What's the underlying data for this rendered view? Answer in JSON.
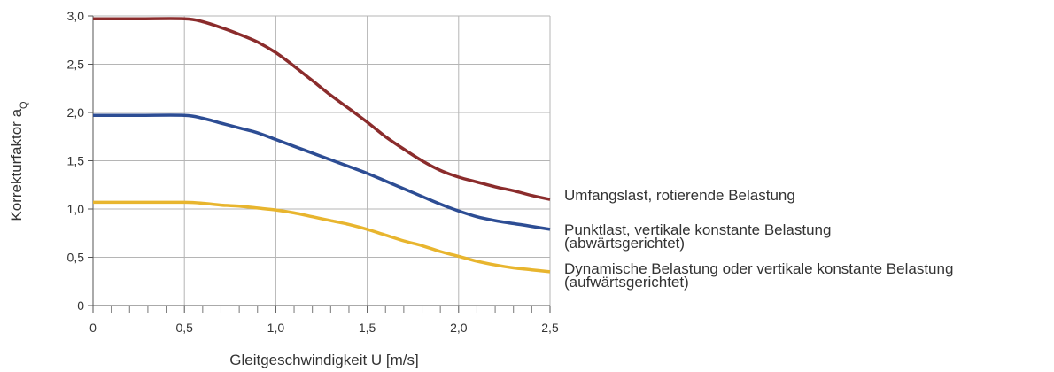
{
  "chart_data": {
    "type": "line",
    "title": "",
    "xlabel": "Gleitgeschwindigkeit U [m/s]",
    "ylabel": "Korrekturfaktor a",
    "ylabel_subscript": "Q",
    "xlim": [
      0,
      2.5
    ],
    "ylim": [
      0,
      3.0
    ],
    "x_ticks": [
      {
        "value": 0,
        "label": "0"
      },
      {
        "value": 0.5,
        "label": "0,5"
      },
      {
        "value": 1.0,
        "label": "1,0"
      },
      {
        "value": 1.5,
        "label": "1,5"
      },
      {
        "value": 2.0,
        "label": "2,0"
      },
      {
        "value": 2.5,
        "label": "2,5"
      }
    ],
    "x_minor_tick_step": 0.1,
    "y_ticks": [
      {
        "value": 0,
        "label": "0"
      },
      {
        "value": 0.5,
        "label": "0,5"
      },
      {
        "value": 1.0,
        "label": "1,0"
      },
      {
        "value": 1.5,
        "label": "1,5"
      },
      {
        "value": 2.0,
        "label": "2,0"
      },
      {
        "value": 2.5,
        "label": "2,5"
      },
      {
        "value": 3.0,
        "label": "3,0"
      }
    ],
    "grid": true,
    "legend": "inline-right",
    "series": [
      {
        "name_lines": [
          "Umfangslast, rotierende Belastung"
        ],
        "color": "#8b2c2c",
        "points": [
          [
            0,
            2.97
          ],
          [
            0.25,
            2.97
          ],
          [
            0.5,
            2.97
          ],
          [
            0.6,
            2.94
          ],
          [
            0.7,
            2.88
          ],
          [
            0.8,
            2.81
          ],
          [
            0.9,
            2.73
          ],
          [
            1.0,
            2.62
          ],
          [
            1.1,
            2.48
          ],
          [
            1.2,
            2.33
          ],
          [
            1.3,
            2.18
          ],
          [
            1.4,
            2.04
          ],
          [
            1.5,
            1.9
          ],
          [
            1.6,
            1.75
          ],
          [
            1.7,
            1.62
          ],
          [
            1.8,
            1.5
          ],
          [
            1.9,
            1.4
          ],
          [
            2.0,
            1.33
          ],
          [
            2.1,
            1.28
          ],
          [
            2.2,
            1.23
          ],
          [
            2.3,
            1.19
          ],
          [
            2.4,
            1.14
          ],
          [
            2.5,
            1.1
          ]
        ]
      },
      {
        "name_lines": [
          "Punktlast, vertikale konstante Belastung",
          "(abwärtsgerichtet)"
        ],
        "color": "#2d4d94",
        "points": [
          [
            0,
            1.97
          ],
          [
            0.25,
            1.97
          ],
          [
            0.5,
            1.97
          ],
          [
            0.6,
            1.94
          ],
          [
            0.7,
            1.89
          ],
          [
            0.8,
            1.84
          ],
          [
            0.9,
            1.79
          ],
          [
            1.0,
            1.72
          ],
          [
            1.1,
            1.65
          ],
          [
            1.2,
            1.58
          ],
          [
            1.3,
            1.51
          ],
          [
            1.4,
            1.44
          ],
          [
            1.5,
            1.37
          ],
          [
            1.6,
            1.29
          ],
          [
            1.7,
            1.21
          ],
          [
            1.8,
            1.13
          ],
          [
            1.9,
            1.05
          ],
          [
            2.0,
            0.98
          ],
          [
            2.1,
            0.92
          ],
          [
            2.2,
            0.88
          ],
          [
            2.3,
            0.85
          ],
          [
            2.4,
            0.82
          ],
          [
            2.5,
            0.79
          ]
        ]
      },
      {
        "name_lines": [
          "Dynamische Belastung oder vertikale konstante Belastung",
          "(aufwärtsgerichtet)"
        ],
        "color": "#e8b52e",
        "points": [
          [
            0,
            1.07
          ],
          [
            0.25,
            1.07
          ],
          [
            0.5,
            1.07
          ],
          [
            0.6,
            1.06
          ],
          [
            0.7,
            1.04
          ],
          [
            0.8,
            1.03
          ],
          [
            0.9,
            1.01
          ],
          [
            1.0,
            0.99
          ],
          [
            1.1,
            0.96
          ],
          [
            1.2,
            0.92
          ],
          [
            1.3,
            0.88
          ],
          [
            1.4,
            0.84
          ],
          [
            1.5,
            0.79
          ],
          [
            1.6,
            0.73
          ],
          [
            1.7,
            0.67
          ],
          [
            1.8,
            0.62
          ],
          [
            1.9,
            0.56
          ],
          [
            2.0,
            0.51
          ],
          [
            2.1,
            0.46
          ],
          [
            2.2,
            0.42
          ],
          [
            2.3,
            0.39
          ],
          [
            2.4,
            0.37
          ],
          [
            2.5,
            0.35
          ]
        ]
      }
    ]
  }
}
